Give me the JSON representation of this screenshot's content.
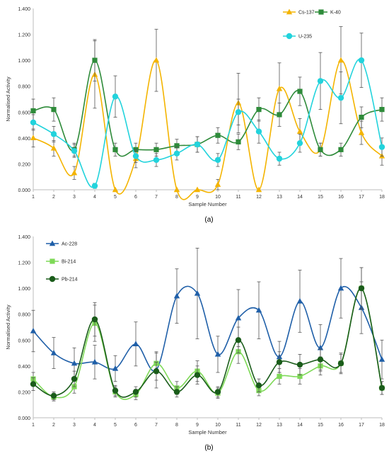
{
  "chart_data": [
    {
      "type": "line",
      "panel_label": "(a)",
      "xlabel": "Sample Number",
      "ylabel": "Normalised Activity",
      "ylim": [
        0,
        1.4
      ],
      "yticks": [
        "0.000",
        "0.200",
        "0.400",
        "0.600",
        "0.800",
        "1.000",
        "1.200",
        "1.400"
      ],
      "categories": [
        "1",
        "2",
        "3",
        "4",
        "5",
        "6",
        "7",
        "8",
        "9",
        "10",
        "11",
        "12",
        "13",
        "14",
        "15",
        "16",
        "17",
        "18"
      ],
      "grid": false,
      "legend_position": "top-right",
      "series": [
        {
          "name": "Cs-137",
          "color": "#f4b400",
          "marker": "triangle",
          "values": [
            0.4,
            0.32,
            0.13,
            0.89,
            0.0,
            0.24,
            1.0,
            0.0,
            0.0,
            0.04,
            0.67,
            0.0,
            0.78,
            0.45,
            0.31,
            1.0,
            0.44,
            0.26
          ],
          "errors": [
            0.07,
            0.06,
            0.05,
            0.26,
            0.0,
            0.07,
            0.24,
            0.0,
            0.0,
            0.04,
            0.23,
            0.0,
            0.2,
            0.1,
            0.05,
            0.26,
            0.09,
            0.07
          ]
        },
        {
          "name": "K-40",
          "color": "#2e8b3a",
          "marker": "square",
          "values": [
            0.61,
            0.62,
            0.31,
            1.0,
            0.31,
            0.31,
            0.31,
            0.34,
            0.35,
            0.42,
            0.37,
            0.62,
            0.58,
            0.76,
            0.31,
            0.31,
            0.56,
            0.62
          ],
          "errors": [
            0.09,
            0.09,
            0.05,
            0.16,
            0.05,
            0.05,
            0.05,
            0.05,
            0.06,
            0.06,
            0.06,
            0.09,
            0.09,
            0.11,
            0.05,
            0.05,
            0.08,
            0.09
          ]
        },
        {
          "name": "U-235",
          "color": "#22d3dc",
          "marker": "circle",
          "values": [
            0.52,
            0.43,
            0.3,
            0.03,
            0.72,
            0.26,
            0.23,
            0.28,
            0.35,
            0.23,
            0.6,
            0.45,
            0.24,
            0.36,
            0.84,
            0.71,
            1.0,
            0.33
          ],
          "errors": [
            0.06,
            0.06,
            0.05,
            0.02,
            0.16,
            0.05,
            0.05,
            0.05,
            0.06,
            0.05,
            0.1,
            0.09,
            0.05,
            0.07,
            0.22,
            0.2,
            0.21,
            0.07
          ]
        }
      ]
    },
    {
      "type": "line",
      "panel_label": "(b)",
      "xlabel": "Sample Number",
      "ylabel": "Normalised Activity",
      "ylim": [
        0,
        1.4
      ],
      "yticks": [
        "0.000",
        "0.200",
        "0.400",
        "0.600",
        "0.800",
        "1.000",
        "1.200",
        "1.400"
      ],
      "categories": [
        "1",
        "2",
        "3",
        "4",
        "5",
        "6",
        "7",
        "8",
        "9",
        "10",
        "11",
        "12",
        "13",
        "14",
        "15",
        "16",
        "17",
        "18"
      ],
      "grid": false,
      "legend_position": "top-left",
      "series": [
        {
          "name": "Ac-228",
          "color": "#1f5fa8",
          "marker": "triangle",
          "values": [
            0.67,
            0.5,
            0.42,
            0.43,
            0.38,
            0.57,
            0.37,
            0.94,
            0.96,
            0.49,
            0.77,
            0.83,
            0.47,
            0.9,
            0.54,
            1.0,
            0.85,
            0.45
          ],
          "errors": [
            0.16,
            0.12,
            0.12,
            0.13,
            0.1,
            0.17,
            0.14,
            0.21,
            0.35,
            0.14,
            0.22,
            0.22,
            0.12,
            0.24,
            0.18,
            0.23,
            0.2,
            0.15
          ]
        },
        {
          "name": "Bi-214",
          "color": "#7ed957",
          "marker": "square",
          "values": [
            0.3,
            0.16,
            0.24,
            0.73,
            0.2,
            0.18,
            0.42,
            0.23,
            0.36,
            0.19,
            0.51,
            0.21,
            0.32,
            0.32,
            0.4,
            0.42,
            1.0,
            0.23
          ],
          "errors": [
            0.05,
            0.03,
            0.05,
            0.14,
            0.04,
            0.04,
            0.08,
            0.05,
            0.08,
            0.04,
            0.09,
            0.04,
            0.06,
            0.06,
            0.07,
            0.07,
            0.16,
            0.05
          ]
        },
        {
          "name": "Pb-214",
          "color": "#1a5c1a",
          "marker": "circle",
          "values": [
            0.26,
            0.17,
            0.3,
            0.76,
            0.21,
            0.2,
            0.36,
            0.2,
            0.33,
            0.2,
            0.6,
            0.25,
            0.43,
            0.41,
            0.45,
            0.42,
            1.0,
            0.23
          ],
          "errors": [
            0.05,
            0.03,
            0.06,
            0.13,
            0.04,
            0.04,
            0.07,
            0.04,
            0.07,
            0.04,
            0.1,
            0.05,
            0.08,
            0.08,
            0.08,
            0.08,
            0.16,
            0.05
          ]
        }
      ]
    }
  ]
}
